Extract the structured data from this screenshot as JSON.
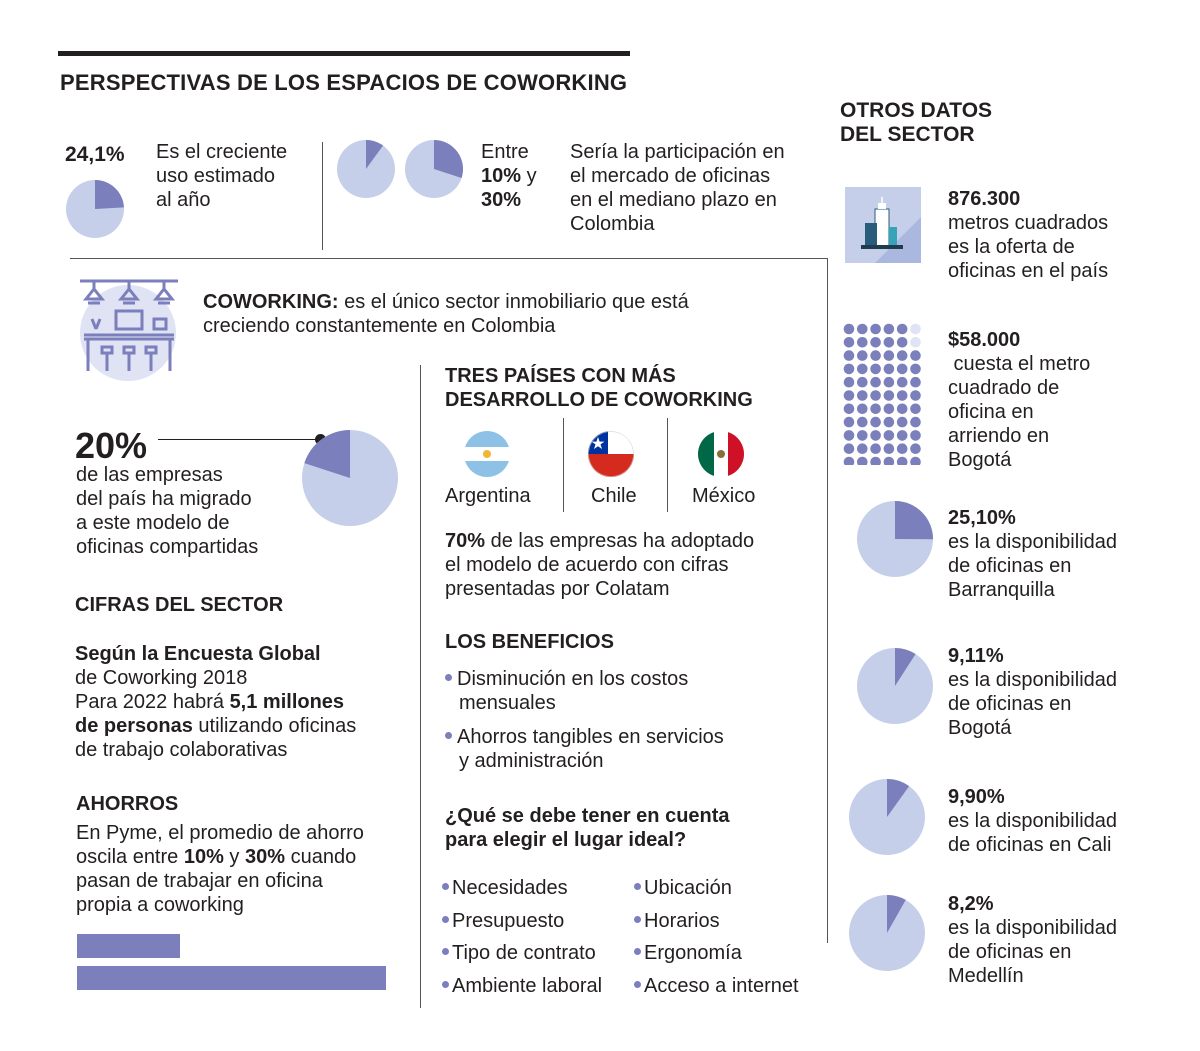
{
  "title": "PERSPECTIVAS DE LOS ESPACIOS DE COWORKING",
  "top": {
    "usage_pct": "24,1%",
    "usage_text": [
      "Es el creciente",
      "uso estimado",
      "al año"
    ],
    "share_between": "Entre",
    "share_low": "10%",
    "share_y": "y",
    "share_high": "30%",
    "share_text": [
      "Sería la participación en",
      "el mercado de oficinas",
      "en el mediano plazo en",
      "Colombia"
    ]
  },
  "coworking": {
    "label": "COWORKING:",
    "text_1": "es el único sector inmobiliario que está",
    "text_2": "creciendo constantemente en Colombia"
  },
  "companies": {
    "pct": "20%",
    "text": [
      "de las empresas",
      "del país ha migrado",
      "a este modelo de",
      "oficinas compartidas"
    ]
  },
  "cifras": {
    "heading": "CIFRAS DEL SECTOR",
    "survey_1": "Según la Encuesta Global",
    "survey_2": "de Coworking 2018",
    "line_1a": "Para 2022 habrá ",
    "line_1b": "5,1 millones",
    "line_2a": "de personas",
    "line_2b": " utilizando oficinas",
    "line_3": "de trabajo colaborativas"
  },
  "ahorros": {
    "heading": "AHORROS",
    "line_1": "En Pyme, el promedio de ahorro",
    "line_2a": "oscila entre ",
    "line_2b": "10%",
    "line_2c": " y ",
    "line_2d": "30%",
    "line_2e": " cuando",
    "line_3": "pasan de trabajar en oficina",
    "line_4": "propia a coworking"
  },
  "paises": {
    "heading_1": "TRES PAÍSES CON MÁS",
    "heading_2": "DESARROLLO DE COWORKING",
    "countries": [
      "Argentina",
      "Chile",
      "México"
    ],
    "adopt_pct": "70%",
    "adopt_1": " de las empresas ha adoptado",
    "adopt_2": "el modelo de acuerdo con cifras",
    "adopt_3": "presentadas  por Colatam"
  },
  "beneficios": {
    "heading": "LOS BENEFICIOS",
    "items": [
      [
        "Disminución en los costos",
        "mensuales"
      ],
      [
        "Ahorros tangibles en servicios",
        "y administración"
      ]
    ]
  },
  "elegir": {
    "heading_1": "¿Qué se debe tener en cuenta",
    "heading_2": "para elegir el lugar ideal?",
    "left": [
      "Necesidades",
      "Presupuesto",
      "Tipo de contrato",
      "Ambiente laboral"
    ],
    "right": [
      "Ubicación",
      "Horarios",
      "Ergonomía",
      "Acceso a internet"
    ]
  },
  "otros": {
    "heading_1": "OTROS DATOS",
    "heading_2": "DEL SECTOR",
    "m2_value": "876.300",
    "m2_text": [
      "metros cuadrados",
      "es la oferta de",
      "oficinas en el país"
    ],
    "price_value": "$58.000",
    "price_text": [
      " cuesta el metro",
      "cuadrado de",
      "oficina en",
      "arriendo en",
      "Bogotá"
    ],
    "cities": [
      {
        "value": "25,10%",
        "text": [
          "es la disponibilidad",
          "de oficinas en",
          "Barranquilla"
        ]
      },
      {
        "value": "9,11%",
        "text": [
          "es la disponibilidad",
          "de oficinas en",
          "Bogotá"
        ]
      },
      {
        "value": "9,90%",
        "text": [
          "es la disponibilidad",
          "de oficinas en Cali"
        ]
      },
      {
        "value": "8,2%",
        "text": [
          "es la disponibilidad",
          "de oficinas en",
          "Medellín"
        ]
      }
    ]
  },
  "colors": {
    "pie_fill": "#c5cfea",
    "pie_slice": "#7b7fbb",
    "dot": "#7b7fbb",
    "dot_light": "#dfe3f3"
  },
  "chart_data": [
    {
      "type": "pie",
      "name_ref": "top.usage_pct",
      "values": [
        24.1,
        75.9
      ]
    },
    {
      "type": "pie",
      "name_ref": "top.share_low",
      "values": [
        10,
        90
      ]
    },
    {
      "type": "pie",
      "name_ref": "top.share_high",
      "values": [
        30,
        70
      ]
    },
    {
      "type": "pie",
      "name_ref": "companies.pct",
      "values": [
        20,
        80
      ]
    },
    {
      "type": "pie",
      "name_ref": "otros.cities.0.value",
      "values": [
        25.1,
        74.9
      ]
    },
    {
      "type": "pie",
      "name_ref": "otros.cities.1.value",
      "values": [
        9.11,
        90.89
      ]
    },
    {
      "type": "pie",
      "name_ref": "otros.cities.2.value",
      "values": [
        9.9,
        90.1
      ]
    },
    {
      "type": "pie",
      "name_ref": "otros.cities.3.value",
      "values": [
        8.2,
        91.8
      ]
    },
    {
      "type": "bar",
      "name_ref": "ahorros.line_2b / line_2d",
      "categories": [
        "10%",
        "30%"
      ],
      "values": [
        10,
        30
      ]
    }
  ]
}
